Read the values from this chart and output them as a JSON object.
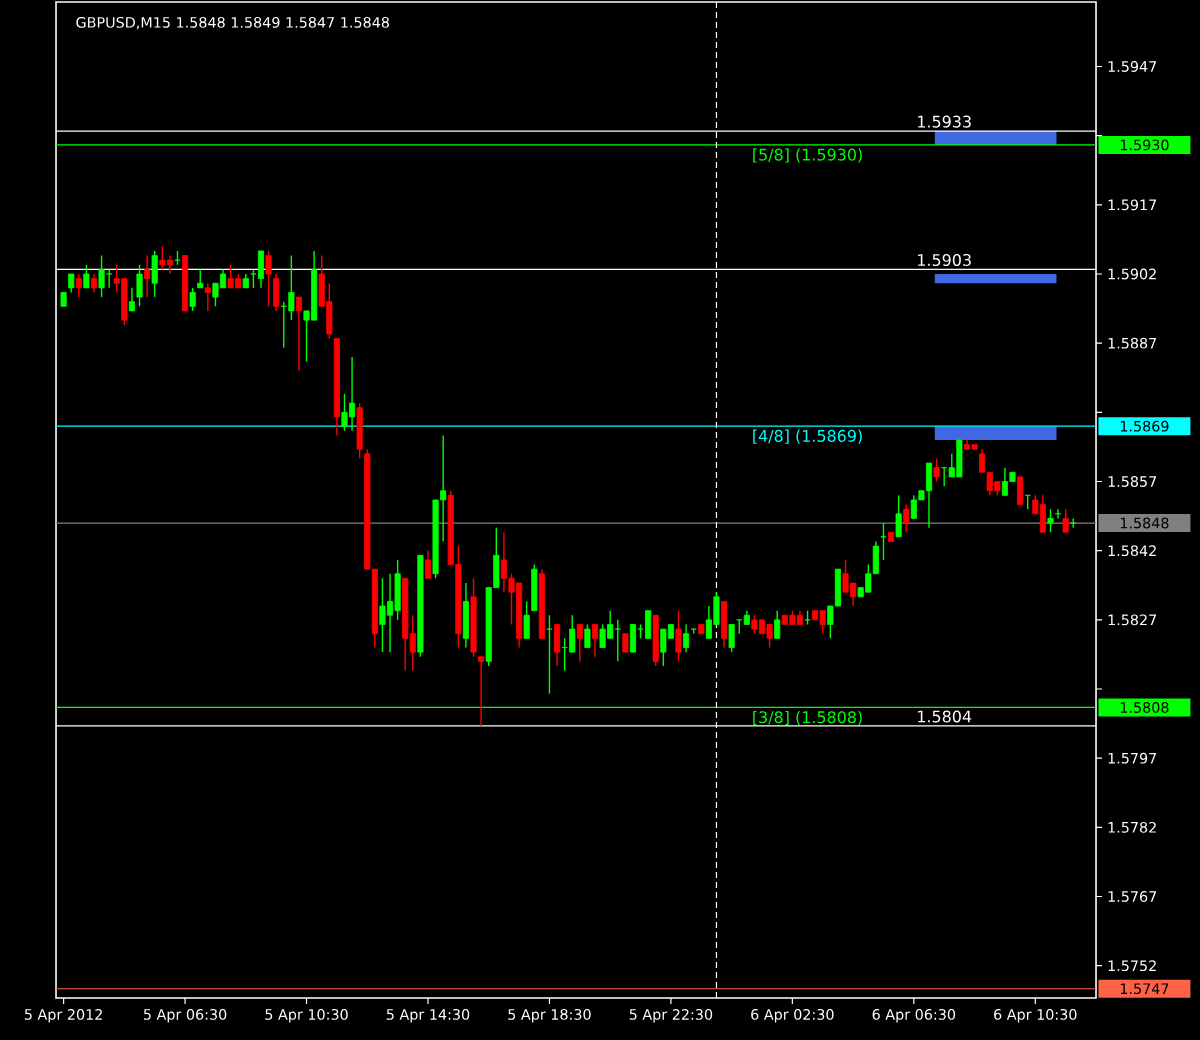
{
  "chart_data": {
    "type": "candlestick",
    "title": "GBPUSD,M15 1.5848 1.5849 1.5847 1.5848",
    "x": [
      "2012-04-05T02:30",
      "2012-04-05T02:45",
      "2012-04-05T03:00",
      "2012-04-05T03:15",
      "2012-04-05T03:30",
      "2012-04-05T03:45",
      "2012-04-05T04:00",
      "2012-04-05T04:15",
      "2012-04-05T04:30",
      "2012-04-05T04:45",
      "2012-04-05T05:00",
      "2012-04-05T05:15",
      "2012-04-05T05:30",
      "2012-04-05T05:45",
      "2012-04-05T06:00",
      "2012-04-05T06:15",
      "2012-04-05T06:30",
      "2012-04-05T06:45",
      "2012-04-05T07:00",
      "2012-04-05T07:15",
      "2012-04-05T07:30",
      "2012-04-05T07:45",
      "2012-04-05T08:00",
      "2012-04-05T08:15",
      "2012-04-05T08:30",
      "2012-04-05T08:45",
      "2012-04-05T09:00",
      "2012-04-05T09:15",
      "2012-04-05T09:30",
      "2012-04-05T09:45",
      "2012-04-05T10:00",
      "2012-04-05T10:15",
      "2012-04-05T10:30",
      "2012-04-05T10:45",
      "2012-04-05T11:00",
      "2012-04-05T11:15",
      "2012-04-05T11:30",
      "2012-04-05T11:45",
      "2012-04-05T12:00",
      "2012-04-05T12:15",
      "2012-04-05T12:30",
      "2012-04-05T12:45",
      "2012-04-05T13:00",
      "2012-04-05T13:15",
      "2012-04-05T13:30",
      "2012-04-05T13:45",
      "2012-04-05T14:00",
      "2012-04-05T14:15",
      "2012-04-05T14:30",
      "2012-04-05T14:45",
      "2012-04-05T15:00",
      "2012-04-05T15:15",
      "2012-04-05T15:30",
      "2012-04-05T15:45",
      "2012-04-05T16:00",
      "2012-04-05T16:15",
      "2012-04-05T16:30",
      "2012-04-05T16:45",
      "2012-04-05T17:00",
      "2012-04-05T17:15",
      "2012-04-05T17:30",
      "2012-04-05T17:45",
      "2012-04-05T18:00",
      "2012-04-05T18:15",
      "2012-04-05T18:30",
      "2012-04-05T18:45",
      "2012-04-05T19:00",
      "2012-04-05T19:15",
      "2012-04-05T19:30",
      "2012-04-05T19:45",
      "2012-04-05T20:00",
      "2012-04-05T20:15",
      "2012-04-05T20:30",
      "2012-04-05T20:45",
      "2012-04-05T21:00",
      "2012-04-05T21:15",
      "2012-04-05T21:30",
      "2012-04-05T21:45",
      "2012-04-05T22:00",
      "2012-04-05T22:15",
      "2012-04-05T22:30",
      "2012-04-05T22:45",
      "2012-04-05T23:00",
      "2012-04-05T23:15",
      "2012-04-05T23:30",
      "2012-04-05T23:45",
      "2012-04-06T00:00",
      "2012-04-06T00:15",
      "2012-04-06T00:30",
      "2012-04-06T00:45",
      "2012-04-06T01:00",
      "2012-04-06T01:15",
      "2012-04-06T01:30",
      "2012-04-06T01:45",
      "2012-04-06T02:00",
      "2012-04-06T02:15",
      "2012-04-06T02:30",
      "2012-04-06T02:45",
      "2012-04-06T03:00",
      "2012-04-06T03:15",
      "2012-04-06T03:30",
      "2012-04-06T03:45",
      "2012-04-06T04:00",
      "2012-04-06T04:15",
      "2012-04-06T04:30",
      "2012-04-06T04:45",
      "2012-04-06T05:00",
      "2012-04-06T05:15",
      "2012-04-06T05:30",
      "2012-04-06T05:45",
      "2012-04-06T06:00",
      "2012-04-06T06:15",
      "2012-04-06T06:30",
      "2012-04-06T06:45",
      "2012-04-06T07:00",
      "2012-04-06T07:15",
      "2012-04-06T07:30",
      "2012-04-06T07:45",
      "2012-04-06T08:00",
      "2012-04-06T08:15",
      "2012-04-06T08:30",
      "2012-04-06T08:45",
      "2012-04-06T09:00",
      "2012-04-06T09:15",
      "2012-04-06T09:30",
      "2012-04-06T09:45",
      "2012-04-06T10:00",
      "2012-04-06T10:15",
      "2012-04-06T10:30",
      "2012-04-06T10:45",
      "2012-04-06T11:00",
      "2012-04-06T11:15",
      "2012-04-06T11:30",
      "2012-04-06T11:45"
    ],
    "ohlc": [
      [
        1.5895,
        1.5898,
        1.5895,
        1.5898
      ],
      [
        1.5899,
        1.5902,
        1.5898,
        1.5902
      ],
      [
        1.5901,
        1.5902,
        1.5897,
        1.5899
      ],
      [
        1.5899,
        1.5904,
        1.5899,
        1.5902
      ],
      [
        1.5901,
        1.5902,
        1.5898,
        1.5899
      ],
      [
        1.5899,
        1.5906,
        1.5897,
        1.5903
      ],
      [
        1.5902,
        1.5903,
        1.5899,
        1.5902
      ],
      [
        1.5901,
        1.5904,
        1.5898,
        1.59
      ],
      [
        1.5901,
        1.5901,
        1.5891,
        1.5892
      ],
      [
        1.5894,
        1.5899,
        1.5894,
        1.5896
      ],
      [
        1.5897,
        1.5904,
        1.5895,
        1.5902
      ],
      [
        1.5903,
        1.5906,
        1.5897,
        1.5901
      ],
      [
        1.59,
        1.5907,
        1.5897,
        1.5906
      ],
      [
        1.5905,
        1.5908,
        1.5903,
        1.5904
      ],
      [
        1.5905,
        1.5906,
        1.5902,
        1.5904
      ],
      [
        1.5905,
        1.5907,
        1.5904,
        1.5905
      ],
      [
        1.5906,
        1.5906,
        1.5894,
        1.5894
      ],
      [
        1.5895,
        1.5899,
        1.5894,
        1.5898
      ],
      [
        1.5899,
        1.5903,
        1.5899,
        1.59
      ],
      [
        1.5899,
        1.59,
        1.5894,
        1.5898
      ],
      [
        1.5897,
        1.59,
        1.5895,
        1.59
      ],
      [
        1.5899,
        1.5903,
        1.5899,
        1.5902
      ],
      [
        1.5901,
        1.5904,
        1.5899,
        1.5899
      ],
      [
        1.5901,
        1.5902,
        1.5899,
        1.5899
      ],
      [
        1.5899,
        1.5902,
        1.5899,
        1.5901
      ],
      [
        1.5902,
        1.5903,
        1.5899,
        1.5902
      ],
      [
        1.5901,
        1.5907,
        1.5899,
        1.5907
      ],
      [
        1.5906,
        1.5907,
        1.5895,
        1.5902
      ],
      [
        1.5901,
        1.5902,
        1.5894,
        1.5895
      ],
      [
        1.5895,
        1.5896,
        1.5886,
        1.5895
      ],
      [
        1.5894,
        1.5906,
        1.5892,
        1.5898
      ],
      [
        1.5897,
        1.5897,
        1.5881,
        1.5894
      ],
      [
        1.5892,
        1.5894,
        1.5883,
        1.5894
      ],
      [
        1.5892,
        1.5907,
        1.5892,
        1.5903
      ],
      [
        1.5902,
        1.5906,
        1.5895,
        1.5895
      ],
      [
        1.5896,
        1.59,
        1.5888,
        1.5889
      ],
      [
        1.5888,
        1.5888,
        1.5867,
        1.5871
      ],
      [
        1.5869,
        1.5876,
        1.5868,
        1.5872
      ],
      [
        1.5871,
        1.5884,
        1.5868,
        1.5874
      ],
      [
        1.5873,
        1.5874,
        1.5862,
        1.5864
      ],
      [
        1.5863,
        1.5864,
        1.5838,
        1.5838
      ],
      [
        1.5838,
        1.5838,
        1.5821,
        1.5824
      ],
      [
        1.5826,
        1.5836,
        1.582,
        1.583
      ],
      [
        1.5828,
        1.5837,
        1.582,
        1.5831
      ],
      [
        1.5829,
        1.584,
        1.5827,
        1.5837
      ],
      [
        1.5836,
        1.5836,
        1.5816,
        1.5823
      ],
      [
        1.5824,
        1.5828,
        1.5816,
        1.582
      ],
      [
        1.582,
        1.5841,
        1.5819,
        1.5841
      ],
      [
        1.584,
        1.5842,
        1.5836,
        1.5836
      ],
      [
        1.5837,
        1.5853,
        1.5836,
        1.5853
      ],
      [
        1.5853,
        1.5867,
        1.5844,
        1.5855
      ],
      [
        1.5854,
        1.5855,
        1.5839,
        1.5839
      ],
      [
        1.5839,
        1.5843,
        1.5821,
        1.5824
      ],
      [
        1.5823,
        1.5835,
        1.5821,
        1.5831
      ],
      [
        1.5832,
        1.5836,
        1.5819,
        1.582
      ],
      [
        1.5819,
        1.5819,
        1.5804,
        1.5818
      ],
      [
        1.5818,
        1.5834,
        1.5817,
        1.5834
      ],
      [
        1.5834,
        1.5847,
        1.5834,
        1.5841
      ],
      [
        1.584,
        1.5846,
        1.5833,
        1.5836
      ],
      [
        1.5836,
        1.5837,
        1.5826,
        1.5833
      ],
      [
        1.5835,
        1.5835,
        1.5821,
        1.5823
      ],
      [
        1.5823,
        1.5831,
        1.5823,
        1.5828
      ],
      [
        1.5829,
        1.5839,
        1.5829,
        1.5838
      ],
      [
        1.5837,
        1.5838,
        1.5823,
        1.5823
      ],
      [
        1.5825,
        1.5828,
        1.5811,
        1.5825
      ],
      [
        1.5826,
        1.5826,
        1.5817,
        1.582
      ],
      [
        1.5821,
        1.5823,
        1.5816,
        1.5821
      ],
      [
        1.582,
        1.5828,
        1.582,
        1.5825
      ],
      [
        1.5826,
        1.5826,
        1.5818,
        1.5823
      ],
      [
        1.5821,
        1.5826,
        1.5821,
        1.5825
      ],
      [
        1.5826,
        1.5826,
        1.5819,
        1.5823
      ],
      [
        1.5821,
        1.5826,
        1.5821,
        1.5825
      ],
      [
        1.5823,
        1.5829,
        1.5823,
        1.5826
      ],
      [
        1.5825,
        1.5827,
        1.5818,
        1.5825
      ],
      [
        1.5824,
        1.5824,
        1.582,
        1.582
      ],
      [
        1.582,
        1.5826,
        1.582,
        1.5826
      ],
      [
        1.5825,
        1.5826,
        1.5823,
        1.5825
      ],
      [
        1.5823,
        1.5829,
        1.5823,
        1.5829
      ],
      [
        1.5828,
        1.5828,
        1.5817,
        1.5818
      ],
      [
        1.582,
        1.5825,
        1.5817,
        1.5825
      ],
      [
        1.5823,
        1.5826,
        1.5823,
        1.5826
      ],
      [
        1.5825,
        1.5829,
        1.5818,
        1.582
      ],
      [
        1.5821,
        1.5826,
        1.582,
        1.5824
      ],
      [
        1.5825,
        1.5825,
        1.5824,
        1.5825
      ],
      [
        1.5826,
        1.5826,
        1.5824,
        1.5824
      ],
      [
        1.5823,
        1.583,
        1.5823,
        1.5827
      ],
      [
        1.5826,
        1.5833,
        1.5826,
        1.5832
      ],
      [
        1.5831,
        1.5831,
        1.5821,
        1.5823
      ],
      [
        1.5821,
        1.5826,
        1.582,
        1.5826
      ],
      [
        1.5827,
        1.5827,
        1.5824,
        1.5827
      ],
      [
        1.5826,
        1.5829,
        1.5826,
        1.5828
      ],
      [
        1.5827,
        1.5828,
        1.5824,
        1.5825
      ],
      [
        1.5827,
        1.5827,
        1.5824,
        1.5824
      ],
      [
        1.5826,
        1.5826,
        1.5821,
        1.5823
      ],
      [
        1.5823,
        1.5829,
        1.5823,
        1.5827
      ],
      [
        1.5828,
        1.5828,
        1.5826,
        1.5826
      ],
      [
        1.5828,
        1.5829,
        1.5826,
        1.5826
      ],
      [
        1.5828,
        1.5829,
        1.5826,
        1.5826
      ],
      [
        1.5827,
        1.5829,
        1.5826,
        1.5827
      ],
      [
        1.5829,
        1.5829,
        1.5827,
        1.5827
      ],
      [
        1.5829,
        1.5829,
        1.5824,
        1.5826
      ],
      [
        1.5826,
        1.583,
        1.5823,
        1.583
      ],
      [
        1.583,
        1.5838,
        1.583,
        1.5838
      ],
      [
        1.5837,
        1.584,
        1.5833,
        1.5833
      ],
      [
        1.5835,
        1.5835,
        1.583,
        1.5832
      ],
      [
        1.5832,
        1.5834,
        1.5832,
        1.5834
      ],
      [
        1.5833,
        1.5839,
        1.5833,
        1.5837
      ],
      [
        1.5837,
        1.5844,
        1.5837,
        1.5843
      ],
      [
        1.5845,
        1.5848,
        1.584,
        1.5845
      ],
      [
        1.5846,
        1.5846,
        1.5844,
        1.5844
      ],
      [
        1.5845,
        1.5854,
        1.5845,
        1.585
      ],
      [
        1.5851,
        1.5852,
        1.5846,
        1.5848
      ],
      [
        1.5849,
        1.5854,
        1.5849,
        1.5853
      ],
      [
        1.5853,
        1.5855,
        1.5853,
        1.5855
      ],
      [
        1.5855,
        1.5861,
        1.5847,
        1.5861
      ],
      [
        1.586,
        1.5862,
        1.5857,
        1.5858
      ],
      [
        1.586,
        1.586,
        1.5856,
        1.586
      ],
      [
        1.5858,
        1.5863,
        1.5858,
        1.586
      ],
      [
        1.5858,
        1.5866,
        1.5858,
        1.5866
      ],
      [
        1.5865,
        1.5866,
        1.5864,
        1.5864
      ],
      [
        1.5865,
        1.5865,
        1.5864,
        1.5864
      ],
      [
        1.5863,
        1.5864,
        1.5859,
        1.5859
      ],
      [
        1.5859,
        1.5859,
        1.5854,
        1.5855
      ],
      [
        1.5857,
        1.5857,
        1.5854,
        1.5855
      ],
      [
        1.5854,
        1.586,
        1.5854,
        1.5857
      ],
      [
        1.5857,
        1.5859,
        1.5857,
        1.5859
      ],
      [
        1.5858,
        1.5858,
        1.5852,
        1.5852
      ],
      [
        1.5854,
        1.5854,
        1.5851,
        1.5854
      ],
      [
        1.5853,
        1.5854,
        1.585,
        1.585
      ],
      [
        1.5852,
        1.5854,
        1.5846,
        1.5846
      ],
      [
        1.5848,
        1.5851,
        1.5846,
        1.5849
      ],
      [
        1.585,
        1.5851,
        1.5849,
        1.585
      ],
      [
        1.5849,
        1.5851,
        1.5846,
        1.5846
      ],
      [
        1.5848,
        1.5849,
        1.5847,
        1.5848
      ]
    ],
    "xlim": [
      "2012-04-05T02:15",
      "2012-04-06T12:30"
    ],
    "xticks": [
      {
        "value": "2012-04-05T02:30",
        "label": "5 Apr 2012"
      },
      {
        "value": "2012-04-05T06:30",
        "label": "5 Apr 06:30"
      },
      {
        "value": "2012-04-05T10:30",
        "label": "5 Apr 10:30"
      },
      {
        "value": "2012-04-05T14:30",
        "label": "5 Apr 14:30"
      },
      {
        "value": "2012-04-05T18:30",
        "label": "5 Apr 18:30"
      },
      {
        "value": "2012-04-05T22:30",
        "label": "5 Apr 22:30"
      },
      {
        "value": "2012-04-06T02:30",
        "label": "6 Apr 02:30"
      },
      {
        "value": "2012-04-06T06:30",
        "label": "6 Apr 06:30"
      },
      {
        "value": "2012-04-06T10:30",
        "label": "6 Apr 10:30"
      }
    ],
    "ylim": [
      1.5745,
      1.5961
    ],
    "yticks": [
      1.5947,
      {
        "value": 1.5932,
        "label": null
      },
      1.5917,
      1.5902,
      1.5887,
      {
        "value": 1.5872,
        "label": null
      },
      1.5857,
      1.5842,
      1.5827,
      {
        "value": 1.5812,
        "label": null
      },
      1.5797,
      1.5782,
      1.5767,
      1.5752
    ],
    "ref_lines": [
      {
        "axis": "y",
        "value": 1.5933,
        "color": "#ffffff"
      },
      {
        "axis": "y",
        "value": 1.593,
        "label": "1.5930",
        "color": "#00ff00"
      },
      {
        "axis": "y",
        "value": 1.5903,
        "color": "#ffffff"
      },
      {
        "axis": "y",
        "value": 1.5869,
        "label": "1.5869",
        "color": "#00ffff"
      },
      {
        "axis": "y",
        "value": 1.5848,
        "label": "1.5848",
        "color": "#808080"
      },
      {
        "axis": "y",
        "value": 1.5808,
        "label": "1.5808",
        "color": "#00ff00"
      },
      {
        "axis": "y",
        "value": 1.5804,
        "color": "#ffffff"
      },
      {
        "axis": "y",
        "value": 1.5747,
        "label": "1.5747",
        "color": "#ff6347"
      },
      {
        "axis": "x",
        "value": "2012-04-06T00:00",
        "color": "#ffffff",
        "line_style": "dashed"
      }
    ],
    "bands": [
      {
        "axis": "y",
        "from": 1.593,
        "to": 1.5933,
        "color": "#4169e1"
      },
      {
        "axis": "y",
        "from": 1.59,
        "to": 1.5902,
        "color": "#4169e1"
      },
      {
        "axis": "y",
        "from": 1.5866,
        "to": 1.5869,
        "color": "#4169e1"
      }
    ],
    "annotations": [
      {
        "text": "[5/8] (1.5930)",
        "x": "2012-04-06T03:00",
        "y": 1.593
      },
      {
        "text": "[4/8] (1.5869)",
        "x": "2012-04-06T03:00",
        "y": 1.5869
      },
      {
        "text": "[3/8] (1.5808)",
        "x": "2012-04-06T03:00",
        "y": 1.5808
      },
      {
        "text": "1.5933",
        "x": "2012-04-06T07:30",
        "y": 1.5933
      },
      {
        "text": "1.5903",
        "x": "2012-04-06T07:30",
        "y": 1.5903
      },
      {
        "text": "1.5804",
        "x": "2012-04-06T07:30",
        "y": 1.5804
      }
    ]
  }
}
